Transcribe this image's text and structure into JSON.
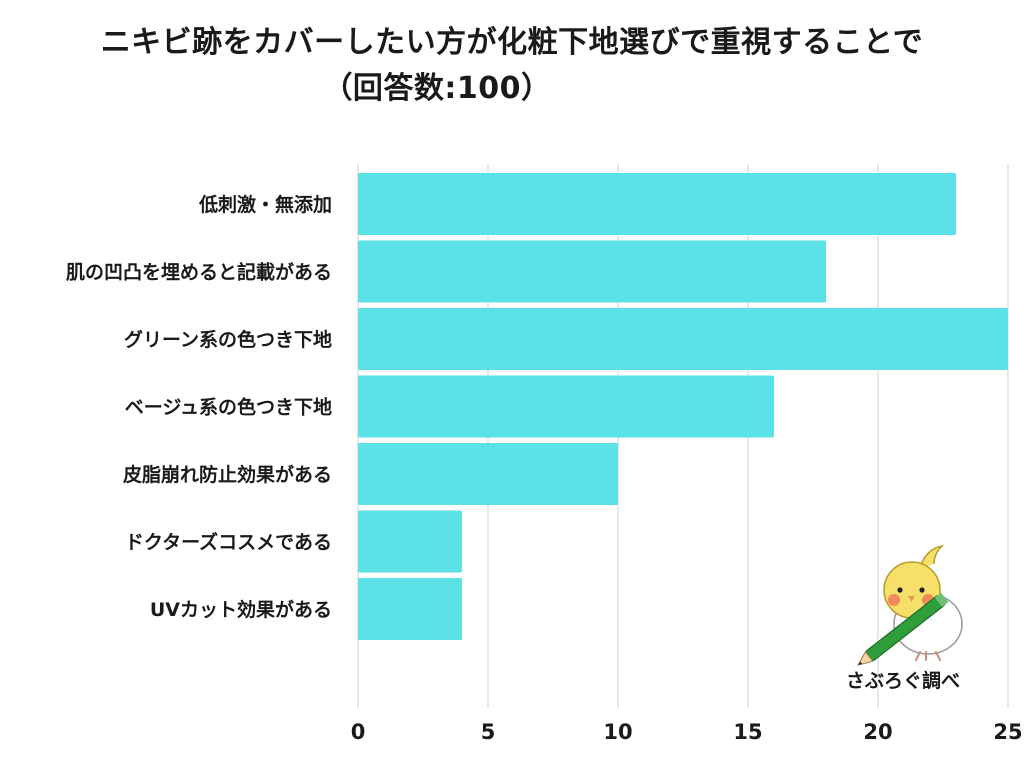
{
  "title": {
    "line1": "ニキビ跡をカバーしたい方が化粧下地選びで重視することで",
    "line2": "（回答数:100）"
  },
  "chart_data": {
    "type": "bar",
    "orientation": "horizontal",
    "categories": [
      "低刺激・無添加",
      "肌の凹凸を埋めると記載がある",
      "グリーン系の色つき下地",
      "ベージュ系の色つき下地",
      "皮脂崩れ防止効果がある",
      "ドクターズコスメである",
      "UVカット効果がある"
    ],
    "values": [
      23,
      18,
      25,
      16,
      10,
      4,
      4
    ],
    "xlim": [
      0,
      25
    ],
    "xticks": [
      0,
      5,
      10,
      15,
      20,
      25
    ],
    "grid": true,
    "bar_color": "#5ce1e6",
    "grid_color": "#d9d9d9"
  },
  "credit": {
    "label": "さぶろぐ調べ",
    "icon": "cockatiel-with-pencil-icon"
  }
}
